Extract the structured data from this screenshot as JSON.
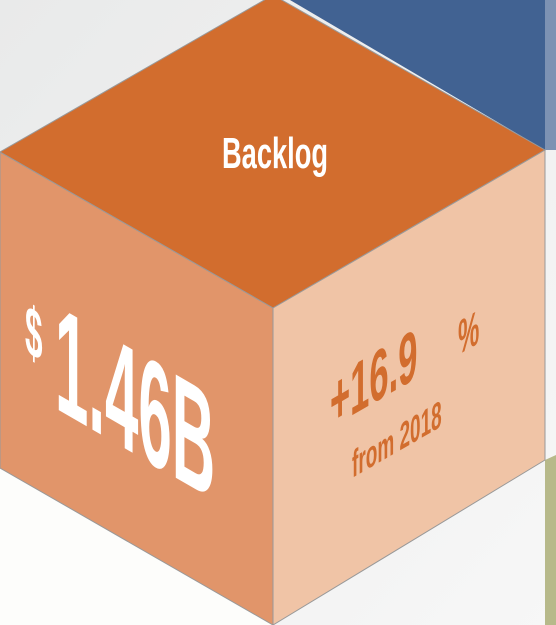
{
  "tile": {
    "title": "Backlog",
    "value": {
      "currency": "$",
      "amount": "1.46B"
    },
    "change": {
      "number": "+16.9",
      "unit": "%",
      "note": "from 2018"
    }
  }
}
